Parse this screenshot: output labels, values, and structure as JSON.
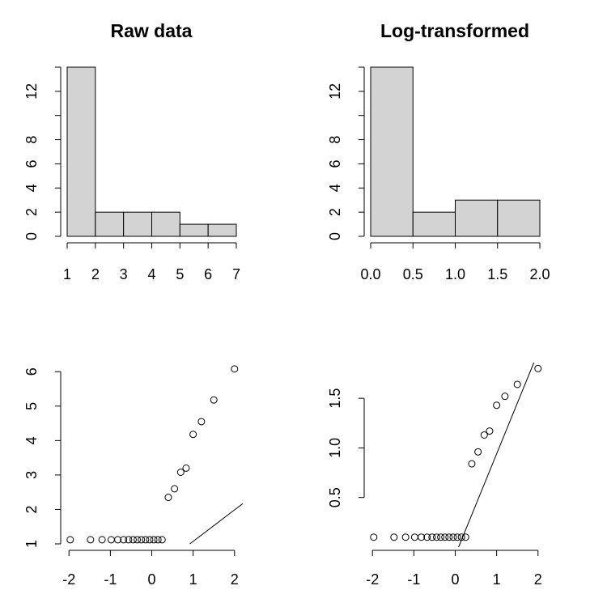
{
  "chart_data": [
    {
      "type": "histogram",
      "title": "Raw data",
      "xlabel": "",
      "ylabel": "",
      "bin_edges": [
        1,
        2,
        3,
        4,
        5,
        6,
        7
      ],
      "values": [
        14,
        2,
        2,
        2,
        1,
        1
      ],
      "xlim": [
        1,
        7
      ],
      "ylim": [
        0,
        14
      ],
      "x_ticks": [
        1,
        2,
        3,
        4,
        5,
        6,
        7
      ],
      "x_tick_labels": [
        "1",
        "2",
        "3",
        "4",
        "5",
        "6",
        "7"
      ],
      "y_ticks": [
        0,
        2,
        4,
        6,
        8,
        12
      ],
      "y_tick_labels": [
        "0",
        "2",
        "4",
        "6",
        "8",
        "12"
      ],
      "grid": false
    },
    {
      "type": "histogram",
      "title": "Log-transformed",
      "xlabel": "",
      "ylabel": "",
      "bin_edges": [
        0.0,
        0.5,
        1.0,
        1.5,
        2.0
      ],
      "values": [
        14,
        2,
        3,
        3
      ],
      "xlim": [
        0,
        2
      ],
      "ylim": [
        0,
        14
      ],
      "x_ticks": [
        0,
        0.5,
        1,
        1.5,
        2
      ],
      "x_tick_labels": [
        "0.0",
        "0.5",
        "1.0",
        "1.5",
        "2.0"
      ],
      "y_ticks": [
        0,
        2,
        4,
        6,
        8,
        12
      ],
      "y_tick_labels": [
        "0",
        "2",
        "4",
        "6",
        "8",
        "12"
      ],
      "grid": false
    },
    {
      "type": "scatter",
      "title": "",
      "xlabel": "",
      "ylabel": "",
      "x": [
        -1.97,
        -1.48,
        -1.2,
        -0.98,
        -0.82,
        -0.68,
        -0.56,
        -0.45,
        -0.35,
        -0.25,
        -0.15,
        -0.05,
        0.05,
        0.15,
        0.25,
        0.4,
        0.55,
        0.7,
        0.83,
        1.0,
        1.2,
        1.5,
        2.0
      ],
      "y": [
        1.12,
        1.12,
        1.12,
        1.12,
        1.12,
        1.12,
        1.12,
        1.12,
        1.12,
        1.12,
        1.12,
        1.12,
        1.12,
        1.12,
        1.12,
        2.35,
        2.6,
        3.08,
        3.2,
        4.18,
        4.55,
        5.18,
        6.08
      ],
      "reference_line": {
        "x": [
          0.92,
          2.2
        ],
        "y": [
          1.0,
          2.17
        ]
      },
      "xlim": [
        -2.2,
        2.2
      ],
      "ylim": [
        1,
        6.1
      ],
      "x_ticks": [
        -2,
        -1,
        0,
        1,
        2
      ],
      "x_tick_labels": [
        "-2",
        "-1",
        "0",
        "1",
        "2"
      ],
      "y_ticks": [
        1,
        2,
        3,
        4,
        5,
        6
      ],
      "y_tick_labels": [
        "1",
        "2",
        "3",
        "4",
        "5",
        "6"
      ],
      "grid": false
    },
    {
      "type": "scatter",
      "title": "",
      "xlabel": "",
      "ylabel": "",
      "x": [
        -1.97,
        -1.48,
        -1.2,
        -0.98,
        -0.82,
        -0.68,
        -0.56,
        -0.45,
        -0.35,
        -0.25,
        -0.15,
        -0.05,
        0.05,
        0.15,
        0.25,
        0.4,
        0.55,
        0.7,
        0.83,
        1.0,
        1.2,
        1.5,
        2.0
      ],
      "y": [
        0.1,
        0.1,
        0.1,
        0.1,
        0.1,
        0.1,
        0.1,
        0.1,
        0.1,
        0.1,
        0.1,
        0.1,
        0.1,
        0.1,
        0.1,
        0.84,
        0.96,
        1.13,
        1.17,
        1.43,
        1.52,
        1.64,
        1.8
      ],
      "reference_line": {
        "x": [
          0.08,
          1.9
        ],
        "y": [
          0.0,
          1.86
        ]
      },
      "xlim": [
        -2.2,
        2.2
      ],
      "ylim": [
        0,
        1.86
      ],
      "x_ticks": [
        -2,
        -1,
        0,
        1,
        2
      ],
      "x_tick_labels": [
        "-2",
        "-1",
        "0",
        "1",
        "2"
      ],
      "y_ticks": [
        0.5,
        1.0,
        1.5
      ],
      "y_tick_labels": [
        "0.5",
        "1.0",
        "1.5"
      ],
      "grid": false
    }
  ]
}
